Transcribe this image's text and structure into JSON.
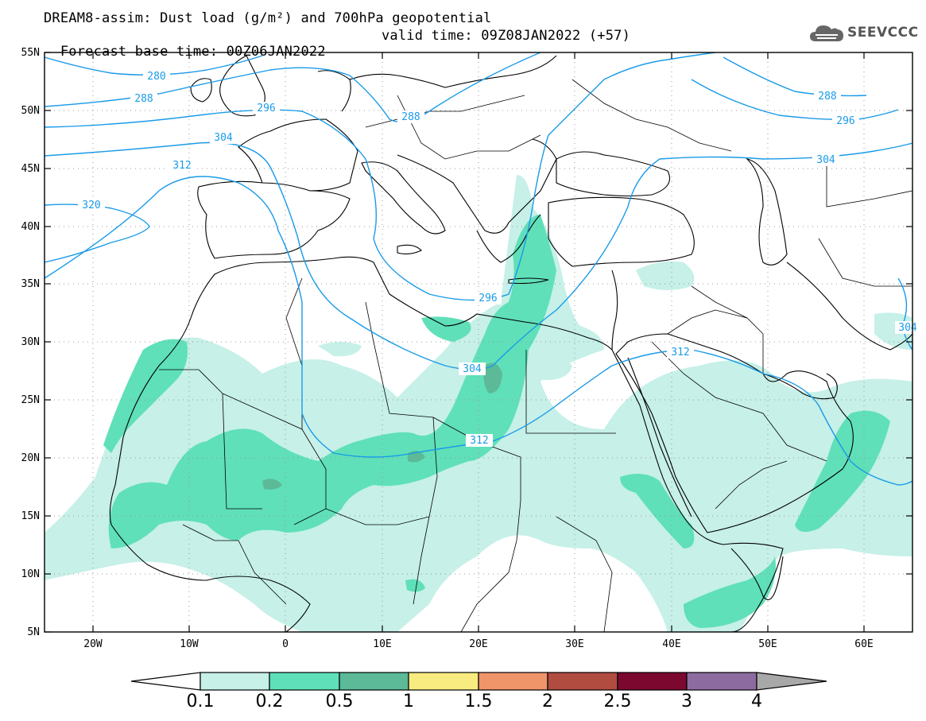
{
  "header": {
    "title_line1": "DREAM8-assim: Dust load (g/m²) and 700hPa geopotential",
    "title_line2_left": "Forecast base time: 00Z06JAN2022",
    "title_line2_right": "valid time: 09Z08JAN2022 (+57)"
  },
  "logo": {
    "text": "SEEVCCC",
    "icon": "cloud-icon"
  },
  "map": {
    "lat_labels": [
      "55N",
      "50N",
      "45N",
      "40N",
      "35N",
      "30N",
      "25N",
      "20N",
      "15N",
      "10N",
      "5N"
    ],
    "lon_labels": [
      "20W",
      "10W",
      "0",
      "10E",
      "20E",
      "30E",
      "40E",
      "50E",
      "60E"
    ],
    "lon_range": [
      -25,
      65
    ],
    "lat_range": [
      5,
      55
    ],
    "contour_color": "#1a9be8",
    "contour_labels": [
      "280",
      "288",
      "296",
      "304",
      "312",
      "320",
      "296",
      "288",
      "304",
      "288",
      "296",
      "304",
      "312",
      "304",
      "312",
      "304"
    ]
  },
  "colorbar": {
    "labels": [
      "0.1",
      "0.2",
      "0.5",
      "1",
      "1.5",
      "2",
      "2.5",
      "3",
      "4"
    ],
    "colors": [
      "#c6f0e8",
      "#5fe0b8",
      "#5cba98",
      "#f8ec80",
      "#f0946a",
      "#b04c40",
      "#7c0830",
      "#8c6ca0",
      "#a8a8a8"
    ]
  }
}
